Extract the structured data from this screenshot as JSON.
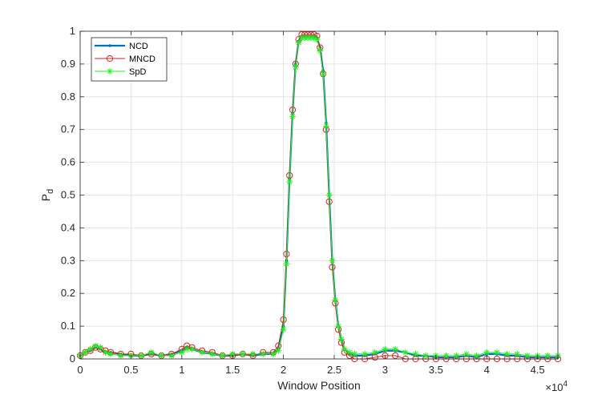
{
  "chart_data": {
    "type": "line",
    "title": "",
    "xlabel": "Window Position",
    "ylabel": "P",
    "ylabel_subscript": "d",
    "x_exponent_base": "×10",
    "x_exponent_power": "4",
    "xlim": [
      0,
      4.7
    ],
    "ylim": [
      0,
      1
    ],
    "grid": true,
    "legend_placement": "top-left",
    "xticks": [
      "0",
      "0.5",
      "1",
      "1.5",
      "2",
      "2.5",
      "3",
      "3.5",
      "4",
      "4.5"
    ],
    "yticks": [
      "0",
      "0.1",
      "0.2",
      "0.3",
      "0.4",
      "0.5",
      "0.6",
      "0.7",
      "0.8",
      "0.9",
      "1"
    ],
    "xtick_values": [
      0,
      0.5,
      1,
      1.5,
      2,
      2.5,
      3,
      3.5,
      4,
      4.5
    ],
    "ytick_values": [
      0,
      0.1,
      0.2,
      0.3,
      0.4,
      0.5,
      0.6,
      0.7,
      0.8,
      0.9,
      1
    ],
    "x": [
      0,
      0.05,
      0.1,
      0.15,
      0.2,
      0.25,
      0.3,
      0.4,
      0.5,
      0.6,
      0.7,
      0.8,
      0.9,
      1.0,
      1.05,
      1.1,
      1.2,
      1.3,
      1.4,
      1.5,
      1.6,
      1.7,
      1.8,
      1.9,
      1.95,
      2.0,
      2.03,
      2.06,
      2.09,
      2.12,
      2.15,
      2.18,
      2.21,
      2.24,
      2.27,
      2.3,
      2.33,
      2.36,
      2.39,
      2.42,
      2.45,
      2.48,
      2.51,
      2.54,
      2.57,
      2.6,
      2.65,
      2.7,
      2.8,
      2.9,
      3.0,
      3.1,
      3.2,
      3.3,
      3.4,
      3.5,
      3.6,
      3.7,
      3.8,
      3.9,
      4.0,
      4.1,
      4.2,
      4.3,
      4.4,
      4.5,
      4.6,
      4.7
    ],
    "series": [
      {
        "name": "NCD",
        "color": "#0072bd",
        "marker": "point",
        "values": [
          0.01,
          0.02,
          0.025,
          0.035,
          0.03,
          0.02,
          0.02,
          0.015,
          0.01,
          0.01,
          0.015,
          0.01,
          0.015,
          0.025,
          0.035,
          0.03,
          0.02,
          0.015,
          0.01,
          0.01,
          0.015,
          0.01,
          0.015,
          0.015,
          0.03,
          0.1,
          0.3,
          0.55,
          0.75,
          0.9,
          0.97,
          0.985,
          0.985,
          0.985,
          0.985,
          0.985,
          0.98,
          0.95,
          0.88,
          0.72,
          0.5,
          0.3,
          0.18,
          0.1,
          0.06,
          0.03,
          0.015,
          0.01,
          0.01,
          0.015,
          0.025,
          0.025,
          0.02,
          0.01,
          0.01,
          0.005,
          0.005,
          0.005,
          0.01,
          0.005,
          0.015,
          0.015,
          0.01,
          0.01,
          0.005,
          0.005,
          0.005,
          0.005
        ]
      },
      {
        "name": "MNCD",
        "color": "#d62020",
        "marker": "circle",
        "values": [
          0.01,
          0.02,
          0.025,
          0.035,
          0.03,
          0.025,
          0.02,
          0.015,
          0.015,
          0.01,
          0.015,
          0.01,
          0.015,
          0.03,
          0.04,
          0.035,
          0.025,
          0.02,
          0.01,
          0.01,
          0.015,
          0.01,
          0.02,
          0.02,
          0.04,
          0.12,
          0.32,
          0.56,
          0.76,
          0.9,
          0.975,
          0.99,
          0.99,
          0.99,
          0.99,
          0.99,
          0.985,
          0.95,
          0.87,
          0.7,
          0.48,
          0.28,
          0.17,
          0.09,
          0.05,
          0.02,
          0.01,
          0.0,
          0.0,
          0.005,
          0.01,
          0.01,
          0.0,
          0.0,
          0.0,
          0.0,
          0.0,
          0.0,
          0.0,
          0.0,
          0.0,
          0.0,
          0.0,
          0.0,
          0.0,
          0.0,
          0.0,
          0.0
        ]
      },
      {
        "name": "SpD",
        "color": "#22ee22",
        "marker": "star",
        "values": [
          0.01,
          0.02,
          0.03,
          0.04,
          0.035,
          0.02,
          0.015,
          0.01,
          0.01,
          0.01,
          0.02,
          0.01,
          0.01,
          0.02,
          0.03,
          0.03,
          0.02,
          0.015,
          0.01,
          0.015,
          0.015,
          0.015,
          0.015,
          0.015,
          0.025,
          0.09,
          0.29,
          0.54,
          0.74,
          0.89,
          0.965,
          0.98,
          0.98,
          0.98,
          0.98,
          0.98,
          0.975,
          0.94,
          0.87,
          0.71,
          0.5,
          0.3,
          0.18,
          0.1,
          0.06,
          0.03,
          0.02,
          0.015,
          0.015,
          0.02,
          0.03,
          0.03,
          0.02,
          0.015,
          0.01,
          0.01,
          0.01,
          0.01,
          0.015,
          0.01,
          0.02,
          0.02,
          0.015,
          0.015,
          0.01,
          0.01,
          0.01,
          0.01
        ]
      }
    ]
  }
}
